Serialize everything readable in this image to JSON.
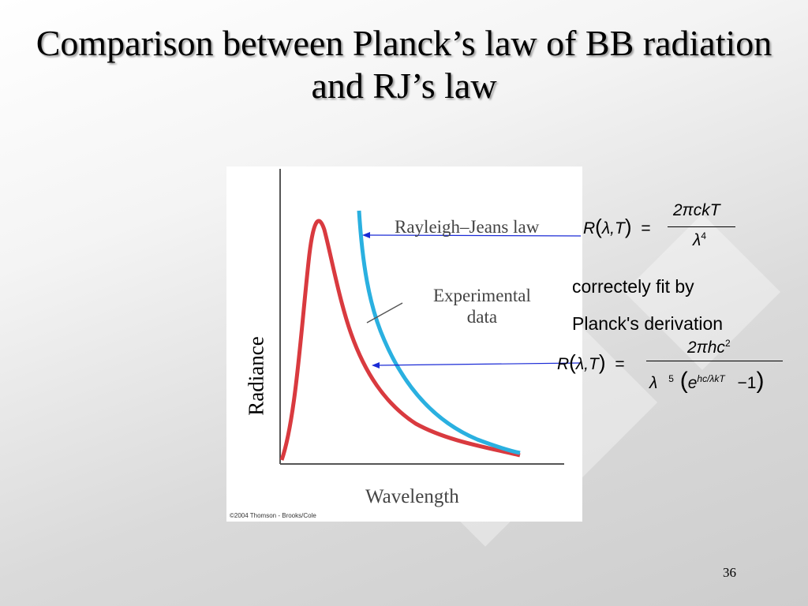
{
  "title": "Comparison between Planck’s law of BB radiation and RJ’s law",
  "figure": {
    "rj_label": "Rayleigh–Jeans law",
    "experimental_label_line1": "Experimental",
    "experimental_label_line2": "data",
    "y_axis_label": "Radiance",
    "x_axis_label": "Wavelength",
    "credit": "©2004 Thomson - Brooks/Cole",
    "colors": {
      "experimental_curve": "#d93a3f",
      "rj_curve": "#2ab0e0",
      "arrow": "#1b2bd6"
    }
  },
  "rj_formula": {
    "lhs": "R",
    "args": "λ,T",
    "equals": "=",
    "numerator": "2πckT",
    "denominator_base": "λ",
    "denominator_exp": "4"
  },
  "note_line1": "correctely fit by",
  "note_line2": "Planck's derivation",
  "planck_formula": {
    "lhs": "R",
    "args": "λ,T",
    "equals": "=",
    "numerator": "2πhc",
    "numerator_exp": "2",
    "denominator_base": "λ",
    "denominator_exp": "5",
    "e": "e",
    "e_exp": "hc/λkT",
    "minus_one": "−1"
  },
  "page_number": "36"
}
